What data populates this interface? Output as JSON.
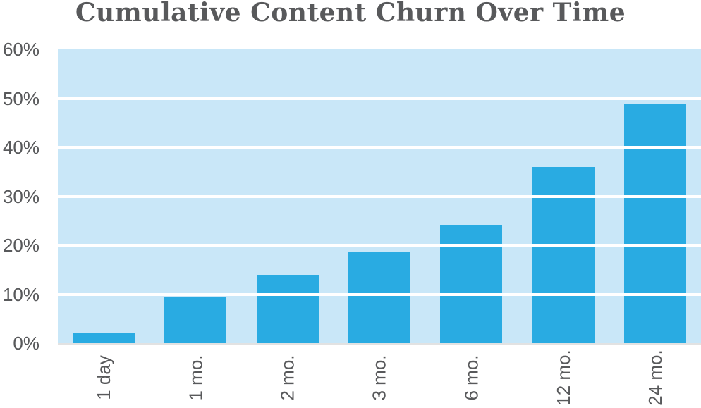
{
  "title": "Cumulative Content Churn Over Time",
  "colors": {
    "bar": "#29abe2",
    "plot_background": "#c9e7f8",
    "gridline": "#ffffff",
    "baseline": "#e2e2e2",
    "text": "#58595b"
  },
  "chart_data": {
    "type": "bar",
    "title": "Cumulative Content Churn Over Time",
    "categories": [
      "1 day",
      "1 mo.",
      "2 mo.",
      "3 mo.",
      "6 mo.",
      "12 mo.",
      "24 mo."
    ],
    "values": [
      2.1,
      9.3,
      13.9,
      18.6,
      24.1,
      36,
      48.8
    ],
    "xlabel": "",
    "ylabel": "",
    "ylim": [
      0,
      60
    ],
    "ytick_step": 10,
    "ytick_labels": [
      "0%",
      "10%",
      "20%",
      "30%",
      "40%",
      "50%",
      "60%"
    ],
    "grid": true,
    "gridline_values": [
      10,
      20,
      30,
      40,
      50
    ],
    "legend": false,
    "x_tick_rotation": 90,
    "bar_color": "#29abe2",
    "plot_background": "#c9e7f8"
  }
}
